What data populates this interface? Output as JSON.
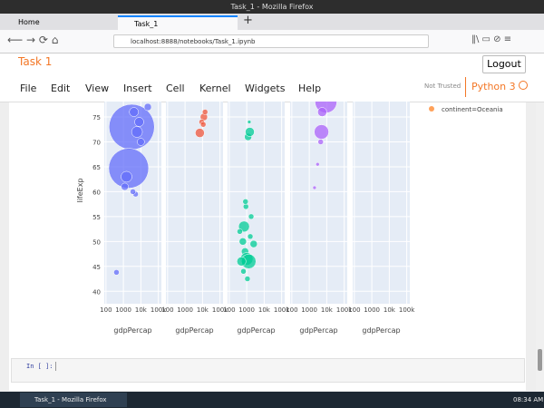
{
  "browser": {
    "window_title": "Task_1 - Mozilla Firefox",
    "tabs": [
      "Home",
      "Task_1"
    ],
    "url": "localhost:8888/notebooks/Task_1.ipynb"
  },
  "notebook": {
    "name": "Task 1",
    "logout": "Logout",
    "menu": [
      "File",
      "Edit",
      "View",
      "Insert",
      "Cell",
      "Kernel",
      "Widgets",
      "Help"
    ],
    "trust": "Not Trusted",
    "kernel": "Python 3",
    "cell_prompt": "In [ ]:"
  },
  "taskbar": {
    "task": "Task_1 - Mozilla Firefox",
    "time": "08:34 AM"
  },
  "chart_data": {
    "type": "scatter",
    "ylabel": "lifeExp",
    "xlabel": "gdpPercap",
    "log_x": true,
    "grid": true,
    "xlim": [
      80,
      150000
    ],
    "ylim": [
      37.5,
      78.1
    ],
    "xticks": [
      100,
      1000,
      {
        "value": 10000,
        "label": "10k"
      },
      {
        "value": 100000,
        "label": "100k"
      }
    ],
    "yticks": [
      40,
      45,
      50,
      55,
      60,
      65,
      70,
      75
    ],
    "series": [
      {
        "color": "#636efa",
        "x": [
          3000,
          2000,
          6000,
          8000,
          1500,
          1200,
          4000,
          25000,
          400,
          5000,
          3500,
          10000
        ],
        "values": [
          73,
          64.7,
          72,
          74,
          63,
          61,
          76,
          77,
          43.8,
          59.5,
          60,
          70
        ],
        "sizes": [
          25,
          22,
          6,
          5,
          6,
          4,
          5,
          4,
          3,
          3,
          3,
          4
        ]
      },
      {
        "color": "#ef553b",
        "x": [
          7000,
          12000,
          14000,
          9000,
          11000
        ],
        "values": [
          71.8,
          75,
          76,
          74,
          73.5
        ],
        "sizes": [
          5,
          4,
          3,
          3,
          3
        ]
      },
      {
        "color": "#00cc96",
        "x": [
          1200,
          1400,
          1500,
          900,
          700,
          600,
          800,
          1000,
          1300,
          500,
          2500,
          650,
          1100,
          400,
          1800,
          850,
          1600
        ],
        "values": [
          71,
          74,
          72,
          57,
          53,
          50,
          48,
          46.5,
          46,
          46,
          49.5,
          44,
          42.5,
          52,
          55,
          58,
          51
        ],
        "sizes": [
          4,
          2,
          5,
          3,
          6,
          4,
          4,
          7,
          8,
          5,
          4,
          3,
          3,
          3,
          3,
          3,
          3
        ]
      },
      {
        "color": "#ab63fa",
        "x": [
          9000,
          5000,
          5500,
          3000,
          2000,
          4500
        ],
        "values": [
          78,
          72,
          76,
          65.5,
          60.8,
          70
        ],
        "sizes": [
          12,
          8,
          5,
          2,
          2,
          3
        ]
      },
      {
        "name": "continent=Oceania",
        "color": "#ffa15a",
        "x": [],
        "values": [],
        "sizes": []
      }
    ]
  }
}
